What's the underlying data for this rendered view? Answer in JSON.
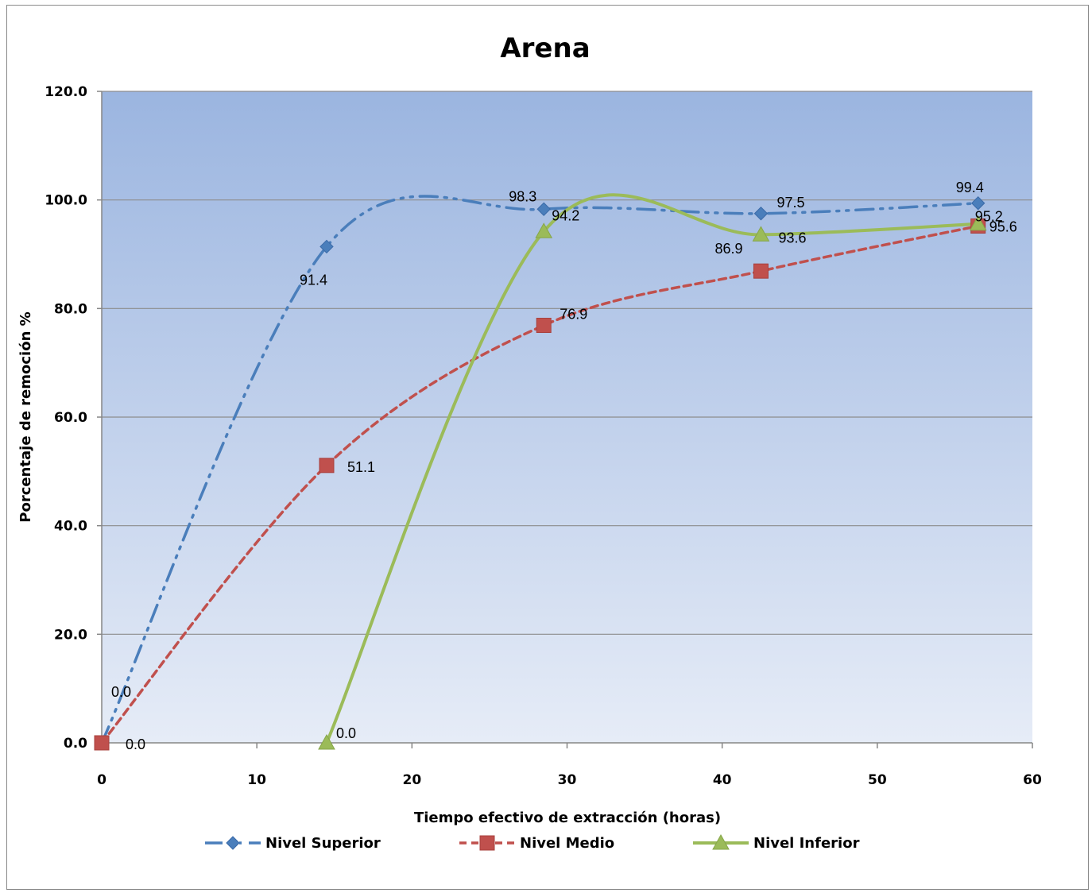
{
  "chart_data": {
    "type": "line",
    "title": "Arena",
    "xlabel": "Tiempo efectivo  de extracción (horas)",
    "ylabel": "Porcentaje de remoción %",
    "xlim": [
      0,
      60
    ],
    "ylim": [
      0,
      120
    ],
    "x_ticks": [
      "0",
      "10",
      "20",
      "30",
      "40",
      "50",
      "60"
    ],
    "y_ticks": [
      "0.0",
      "20.0",
      "40.0",
      "60.0",
      "80.0",
      "100.0",
      "120.0"
    ],
    "grid": true,
    "smoothed": true,
    "legend_position": "bottom",
    "background": {
      "top": "#9bb5e0",
      "bottom": "#e6ecf7"
    },
    "series": [
      {
        "name": "Nivel Superior",
        "color": "#4a7ebb",
        "line_style": "dash-dot-dot",
        "marker": "diamond",
        "x": [
          0,
          14.5,
          28.5,
          42.5,
          56.5
        ],
        "y": [
          0.0,
          91.4,
          98.3,
          97.5,
          99.4
        ],
        "labels": [
          "0.0",
          "91.4",
          "98.3",
          "97.5",
          "99.4"
        ]
      },
      {
        "name": "Nivel Medio",
        "color": "#c0504d",
        "line_style": "dashed",
        "marker": "square",
        "x": [
          0,
          14.5,
          28.5,
          42.5,
          56.5
        ],
        "y": [
          0.0,
          51.1,
          76.9,
          86.9,
          95.2
        ],
        "labels": [
          "0.0",
          "51.1",
          "76.9",
          "86.9",
          "95.2"
        ]
      },
      {
        "name": "Nivel Inferior",
        "color": "#9bbb59",
        "line_style": "solid",
        "marker": "triangle",
        "x": [
          14.5,
          28.5,
          42.5,
          56.5
        ],
        "y": [
          0.0,
          94.2,
          93.6,
          95.6
        ],
        "labels": [
          "0.0",
          "94.2",
          "93.6",
          "95.6"
        ]
      }
    ]
  }
}
